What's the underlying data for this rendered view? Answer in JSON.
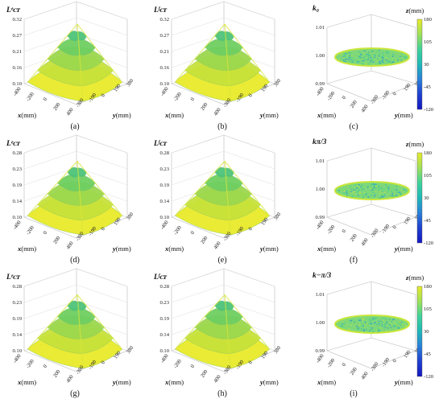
{
  "figure": {
    "colorbar": {
      "title_var": "z",
      "title_unit": "(mm)",
      "ticks": [
        "180",
        "105",
        "30",
        "-45",
        "-120"
      ],
      "colors": [
        "#e8ea2a",
        "#9fe05a",
        "#3fd29a",
        "#1fb8b8",
        "#2a7fd8",
        "#2040d0",
        "#1418c0"
      ]
    },
    "x_axis": {
      "var": "x",
      "unit": "(mm)",
      "ticks": [
        "-400",
        "-200",
        "0",
        "200",
        "400"
      ]
    },
    "y_axis": {
      "var": "y",
      "unit": "(mm)",
      "ticks": [
        "-380",
        "-190",
        "0",
        "190",
        "380"
      ]
    },
    "surface_colors": [
      "#e8ea2a",
      "#c8e23a",
      "#9cd84e",
      "#6fcf62",
      "#4ec47a"
    ],
    "panels": [
      {
        "caption": "(a)",
        "type": "surface",
        "zlabel": "Lᵉᴄᴛ",
        "zticks": [
          "0.10",
          "0.16",
          "0.21",
          "0.27",
          "0.32"
        ],
        "zmin": 0.1,
        "zmax": 0.32,
        "peak": 0.32
      },
      {
        "caption": "(b)",
        "type": "surface",
        "zlabel": "Lᶠᴄᴛ",
        "zticks": [
          "0.10",
          "0.16",
          "0.21",
          "0.27",
          "0.32"
        ],
        "zmin": 0.1,
        "zmax": 0.32,
        "peak": 0.32
      },
      {
        "caption": "(c)",
        "type": "flat",
        "zlabel": "k₀",
        "zticks": [
          "0.99",
          "1.00",
          "1.01"
        ],
        "zmin": 0.99,
        "zmax": 1.01
      },
      {
        "caption": "(d)",
        "type": "surface",
        "zlabel": "Lᵉᴄᴛ",
        "zticks": [
          "0.10",
          "0.14",
          "0.19",
          "0.23",
          "0.28"
        ],
        "zmin": 0.1,
        "zmax": 0.28,
        "peak": 0.27
      },
      {
        "caption": "(e)",
        "type": "surface",
        "zlabel": "Lᶠᴄᴛ",
        "zticks": [
          "0.10",
          "0.14",
          "0.19",
          "0.23",
          "0.28"
        ],
        "zmin": 0.1,
        "zmax": 0.28,
        "peak": 0.27
      },
      {
        "caption": "(f)",
        "type": "flat",
        "zlabel": "kπ/3",
        "zticks": [
          "0.99",
          "1.00",
          "1.01"
        ],
        "zmin": 0.99,
        "zmax": 1.01
      },
      {
        "caption": "(g)",
        "type": "surface",
        "zlabel": "Lᵉᴄᴛ",
        "zticks": [
          "0.10",
          "0.14",
          "0.19",
          "0.23",
          "0.28"
        ],
        "zmin": 0.1,
        "zmax": 0.28,
        "peak": 0.27
      },
      {
        "caption": "(h)",
        "type": "surface",
        "zlabel": "Lᶠᴄᴛ",
        "zticks": [
          "0.10",
          "0.14",
          "0.19",
          "0.23",
          "0.28"
        ],
        "zmin": 0.1,
        "zmax": 0.28,
        "peak": 0.27
      },
      {
        "caption": "(i)",
        "type": "flat",
        "zlabel": "k−π/3",
        "zticks": [
          "0.99",
          "1.00",
          "1.01"
        ],
        "zmin": 0.99,
        "zmax": 1.01
      }
    ]
  }
}
